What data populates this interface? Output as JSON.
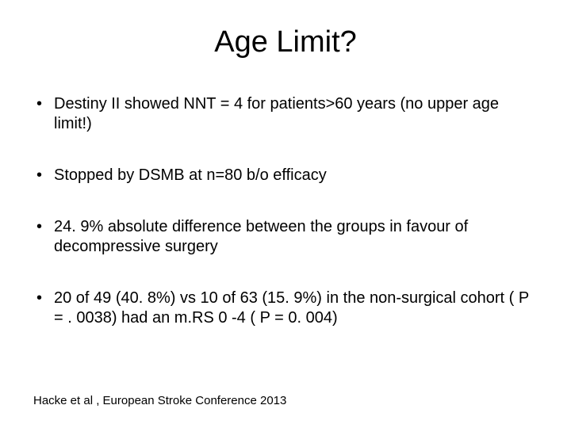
{
  "slide": {
    "title": "Age Limit?",
    "bullets": [
      "Destiny II showed NNT = 4 for patients>60 years (no upper age limit!)",
      "Stopped by DSMB at n=80 b/o efficacy",
      "24. 9% absolute difference between the groups in favour of decompressive surgery",
      "20 of 49 (40. 8%) vs 10 of 63 (15. 9%) in the non-surgical cohort ( P = . 0038) had an m.RS 0 -4 ( P = 0. 004)"
    ],
    "citation": "Hacke et al , European Stroke Conference 2013"
  },
  "styles": {
    "background_color": "#ffffff",
    "text_color": "#000000",
    "title_fontsize": 38,
    "bullet_fontsize": 20,
    "citation_fontsize": 15,
    "font_family": "Arial"
  }
}
